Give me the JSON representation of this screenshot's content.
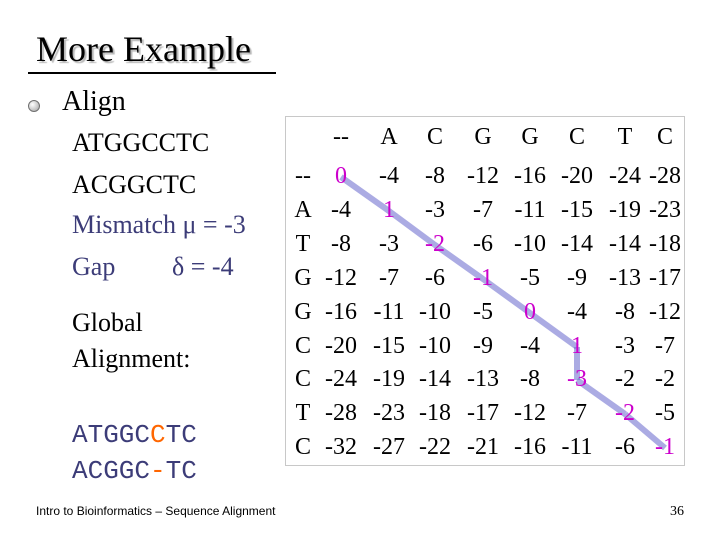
{
  "slide": {
    "title": "More Example",
    "bullet": "Align",
    "seq1": "ATGGCCTC",
    "seq2": "ACGGCTC",
    "mismatch_label": "Mismatch μ = -3",
    "gap_label": "Gap",
    "gap_value": "δ = -4",
    "global_line1": "Global",
    "global_line2": "Alignment:",
    "aligned1_a": "ATGGC",
    "aligned1_b": "C",
    "aligned1_c": "TC",
    "aligned2_a": "ACGGC",
    "aligned2_b": "-",
    "aligned2_c": "TC",
    "footer": "Intro to Bioinformatics – Sequence Alignment",
    "page_number": "36"
  },
  "matrix": {
    "col_headers": [
      "--",
      "A",
      "C",
      "G",
      "G",
      "C",
      "T",
      "C"
    ],
    "row_headers": [
      "--",
      "A",
      "T",
      "G",
      "G",
      "C",
      "C",
      "T",
      "C"
    ],
    "rows": [
      [
        "0",
        "-4",
        "-8",
        "-12",
        "-16",
        "-20",
        "-24",
        "-28"
      ],
      [
        "-4",
        "1",
        "-3",
        "-7",
        "-11",
        "-15",
        "-19",
        "-23"
      ],
      [
        "-8",
        "-3",
        "-2",
        "-6",
        "-10",
        "-14",
        "-14",
        "-18"
      ],
      [
        "-12",
        "-7",
        "-6",
        "-1",
        "-5",
        "-9",
        "-13",
        "-17"
      ],
      [
        "-16",
        "-11",
        "-10",
        "-5",
        "0",
        "-4",
        "-8",
        "-12"
      ],
      [
        "-20",
        "-15",
        "-10",
        "-9",
        "-4",
        "1",
        "-3",
        "-7"
      ],
      [
        "-24",
        "-19",
        "-14",
        "-13",
        "-8",
        "-3",
        "-2",
        "-2"
      ],
      [
        "-28",
        "-23",
        "-18",
        "-17",
        "-12",
        "-7",
        "-2",
        "-5"
      ],
      [
        "-32",
        "-27",
        "-22",
        "-21",
        "-16",
        "-11",
        "-6",
        "-1"
      ]
    ],
    "highlight_color": "#cc00cc",
    "path_color": "#6666cc",
    "traceback_path": [
      [
        0,
        0
      ],
      [
        1,
        1
      ],
      [
        2,
        2
      ],
      [
        3,
        3
      ],
      [
        4,
        4
      ],
      [
        5,
        5
      ],
      [
        6,
        5
      ],
      [
        7,
        6
      ],
      [
        8,
        7
      ]
    ]
  }
}
